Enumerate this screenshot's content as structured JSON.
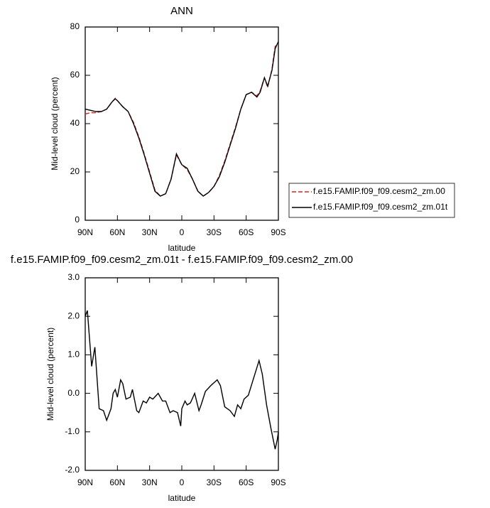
{
  "chart_data": [
    {
      "type": "line",
      "title": "ANN",
      "xlabel": "latitude",
      "ylabel": "Mid-level cloud (percent)",
      "x": [
        90,
        85,
        80,
        75,
        70,
        65,
        62,
        60,
        55,
        50,
        45,
        40,
        35,
        30,
        25,
        20,
        15,
        10,
        5,
        0,
        -5,
        -10,
        -15,
        -20,
        -25,
        -30,
        -35,
        -40,
        -45,
        -50,
        -55,
        -60,
        -65,
        -70,
        -73,
        -77,
        -80,
        -84,
        -87,
        -90
      ],
      "series": [
        {
          "name": "f.e15.FAMIP.f09_f09.cesm2_zm.00",
          "color": "#e0201b",
          "line_style": "dashed",
          "values": [
            44,
            44.5,
            44.5,
            45,
            46,
            49,
            50.5,
            49.5,
            47,
            45,
            40.5,
            34.5,
            27.5,
            20,
            12.5,
            10,
            11,
            17,
            27,
            23,
            21,
            17,
            12,
            10,
            11.5,
            14,
            18.5,
            24.5,
            31.5,
            38.5,
            46,
            52,
            53,
            51.5,
            53.5,
            59,
            55,
            62.5,
            72,
            73
          ]
        },
        {
          "name": "f.e15.FAMIP.f09_f09.cesm2_zm.01t",
          "color": "#000000",
          "line_style": "solid",
          "values": [
            46,
            45.5,
            45,
            45,
            46,
            49,
            50.3,
            49.5,
            47,
            45,
            40,
            34,
            27,
            19.5,
            12,
            10,
            11,
            17,
            27.5,
            23,
            21.5,
            17,
            12,
            10,
            11.5,
            14,
            18,
            24,
            31,
            38,
            46,
            52,
            53,
            51,
            53,
            59,
            55.5,
            62,
            71,
            74
          ]
        }
      ],
      "xlim": [
        90,
        -90
      ],
      "xticks": [
        {
          "value": 90,
          "label": "90N"
        },
        {
          "value": 60,
          "label": "60N"
        },
        {
          "value": 30,
          "label": "30N"
        },
        0,
        {
          "value": -30,
          "label": "30S"
        },
        {
          "value": -60,
          "label": "60S"
        },
        {
          "value": -90,
          "label": "90S"
        }
      ],
      "ylim": [
        0,
        80
      ],
      "yticks": [
        0,
        20,
        40,
        60,
        80
      ],
      "legend": "right"
    },
    {
      "type": "line",
      "title": "f.e15.FAMIP.f09_f09.cesm2_zm.01t - f.e15.FAMIP.f09_f09.cesm2_zm.00",
      "xlabel": "latitude",
      "ylabel": "Mid-level cloud (percent)",
      "x": [
        90,
        88,
        84,
        81,
        77,
        73,
        70,
        66,
        64,
        62,
        60,
        57,
        55,
        52,
        48,
        46,
        42,
        40,
        36,
        33,
        30,
        27,
        22,
        18,
        15,
        11,
        8,
        4,
        1,
        0,
        -3,
        -5,
        -8,
        -12,
        -16,
        -18,
        -22,
        -27,
        -33,
        -36,
        -40,
        -45,
        -49,
        -52,
        -55,
        -58,
        -62,
        -67,
        -72,
        -75,
        -79,
        -83,
        -87,
        -89,
        -90
      ],
      "values": [
        2.0,
        2.15,
        0.7,
        1.2,
        -0.4,
        -0.45,
        -0.7,
        -0.4,
        0.0,
        0.1,
        -0.1,
        0.35,
        0.25,
        -0.15,
        -0.1,
        0.1,
        -0.45,
        -0.5,
        -0.2,
        -0.25,
        -0.1,
        -0.15,
        0.0,
        -0.2,
        -0.2,
        -0.5,
        -0.45,
        -0.5,
        -0.85,
        -0.4,
        -0.2,
        -0.3,
        -0.25,
        0.0,
        -0.45,
        -0.3,
        0.05,
        0.2,
        0.35,
        0.2,
        -0.35,
        -0.45,
        -0.6,
        -0.3,
        -0.4,
        -0.15,
        -0.05,
        0.4,
        0.85,
        0.5,
        -0.3,
        -0.9,
        -1.45,
        -1.2,
        -1.0
      ],
      "color": "#000000",
      "line_style": "solid",
      "xlim": [
        90,
        -90
      ],
      "xticks": [
        {
          "value": 90,
          "label": "90N"
        },
        {
          "value": 60,
          "label": "60N"
        },
        {
          "value": 30,
          "label": "30N"
        },
        0,
        {
          "value": -30,
          "label": "30S"
        },
        {
          "value": -60,
          "label": "60S"
        },
        {
          "value": -90,
          "label": "90S"
        }
      ],
      "ylim": [
        -2,
        3
      ],
      "yticks": [
        {
          "value": -2,
          "label": "-2.0"
        },
        {
          "value": -1,
          "label": "-1.0"
        },
        {
          "value": 0,
          "label": "0.0"
        },
        {
          "value": 1,
          "label": "1.0"
        },
        {
          "value": 2,
          "label": "2.0"
        },
        {
          "value": 3,
          "label": "3.0"
        }
      ]
    }
  ]
}
